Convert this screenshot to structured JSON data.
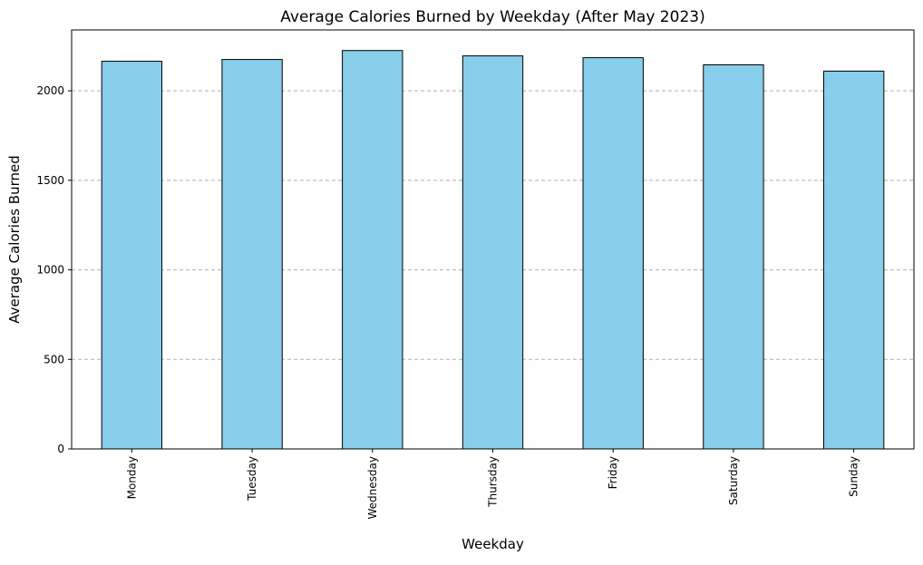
{
  "chart_data": {
    "type": "bar",
    "title": "Average Calories Burned by Weekday (After May 2023)",
    "xlabel": "Weekday",
    "ylabel": "Average Calories Burned",
    "categories": [
      "Monday",
      "Tuesday",
      "Wednesday",
      "Thursday",
      "Friday",
      "Saturday",
      "Sunday"
    ],
    "values": [
      2165,
      2175,
      2225,
      2195,
      2185,
      2145,
      2110
    ],
    "ylim": [
      0,
      2340
    ],
    "yticks": [
      0,
      500,
      1000,
      1500,
      2000
    ],
    "grid": "y-axis dashed",
    "legend": "none",
    "bar_color": "#87CEEB",
    "bar_edge_color": "#000000",
    "grid_color": "#b0b0b0"
  }
}
